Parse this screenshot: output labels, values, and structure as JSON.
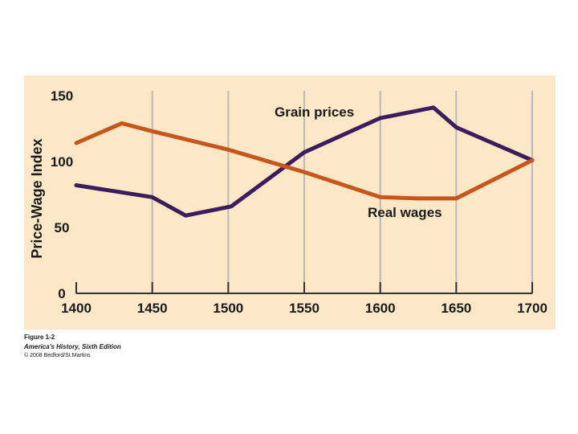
{
  "colors": {
    "panel_background": "#fce8c6",
    "grid": "#b9b9b9",
    "axis": "#333333",
    "grain_prices_line": "#3d1c5e",
    "real_wages_line": "#c7561d"
  },
  "chart_data": {
    "type": "line",
    "title": "",
    "xlabel": "",
    "ylabel": "Price-Wage Index",
    "xlim": [
      1400,
      1700
    ],
    "ylim": [
      0,
      150
    ],
    "x_ticks": [
      1400,
      1450,
      1500,
      1550,
      1600,
      1650,
      1700
    ],
    "y_ticks": [
      0,
      50,
      100,
      150
    ],
    "grid": {
      "vertical": true,
      "horizontal": false
    },
    "series": [
      {
        "name": "Grain prices",
        "color": "#3d1c5e",
        "x": [
          1400,
          1450,
          1472,
          1502,
          1550,
          1600,
          1635,
          1650,
          1700
        ],
        "values": [
          82,
          73,
          59,
          66,
          107,
          133,
          141,
          126,
          101
        ]
      },
      {
        "name": "Real wages",
        "color": "#c7561d",
        "x": [
          1400,
          1430,
          1450,
          1500,
          1550,
          1600,
          1625,
          1650,
          1700
        ],
        "values": [
          114,
          129,
          123,
          109,
          92,
          73,
          72,
          72,
          101
        ]
      }
    ]
  },
  "figure_caption": {
    "figure": "Figure 1-2",
    "book": "America's History, Sixth Edition",
    "copyright": "© 2008 Bedford/St.Martins"
  }
}
